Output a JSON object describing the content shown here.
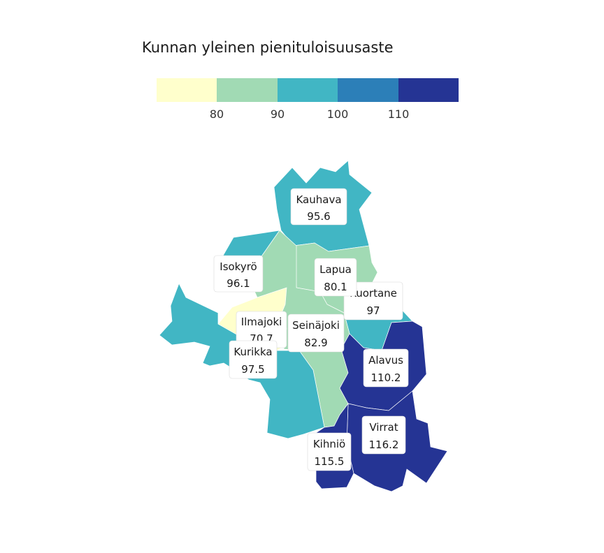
{
  "legend": {
    "title": "Kunnan yleinen pienituloisuusaste",
    "colors": [
      "#ffffcc",
      "#a1dab4",
      "#41b6c4",
      "#2c7fb8",
      "#253494"
    ],
    "ticks": [
      "80",
      "90",
      "100",
      "110"
    ]
  },
  "municipalities": [
    {
      "name": "Kauhava",
      "value": "95.6",
      "color": "#41b6c4"
    },
    {
      "name": "Isokyrö",
      "value": "96.1",
      "color": "#41b6c4"
    },
    {
      "name": "Lapua",
      "value": "80.1",
      "color": "#a1dab4"
    },
    {
      "name": "Kuortane",
      "value": "97",
      "color": "#41b6c4"
    },
    {
      "name": "Ilmajoki",
      "value": "70.7",
      "color": "#ffffcc"
    },
    {
      "name": "Seinäjoki",
      "value": "82.9",
      "color": "#a1dab4"
    },
    {
      "name": "Kurikka",
      "value": "97.5",
      "color": "#41b6c4"
    },
    {
      "name": "Alavus",
      "value": "110.2",
      "color": "#253494"
    },
    {
      "name": "Virrat",
      "value": "116.2",
      "color": "#253494"
    },
    {
      "name": "Kihniö",
      "value": "115.5",
      "color": "#253494"
    }
  ]
}
